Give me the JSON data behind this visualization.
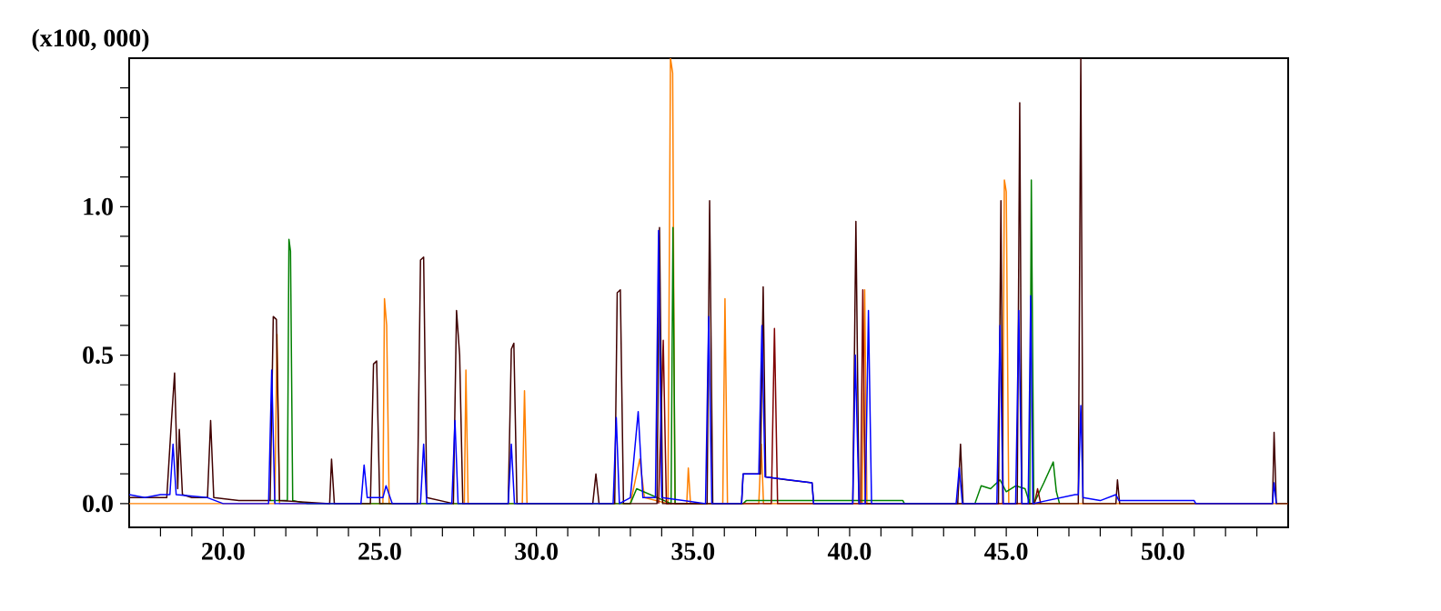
{
  "chart_data": {
    "type": "line",
    "ylabel": "(x100, 000)",
    "xlim": [
      17,
      54
    ],
    "ylim": [
      -0.08,
      1.5
    ],
    "xticks": [
      {
        "value": 18,
        "label": null
      },
      {
        "value": 19,
        "label": null
      },
      {
        "value": 20,
        "label": "20.0"
      },
      {
        "value": 21,
        "label": null
      },
      {
        "value": 22,
        "label": null
      },
      {
        "value": 23,
        "label": null
      },
      {
        "value": 24,
        "label": null
      },
      {
        "value": 25,
        "label": "25.0"
      },
      {
        "value": 26,
        "label": null
      },
      {
        "value": 27,
        "label": null
      },
      {
        "value": 28,
        "label": null
      },
      {
        "value": 29,
        "label": null
      },
      {
        "value": 30,
        "label": "30.0"
      },
      {
        "value": 31,
        "label": null
      },
      {
        "value": 32,
        "label": null
      },
      {
        "value": 33,
        "label": null
      },
      {
        "value": 34,
        "label": null
      },
      {
        "value": 35,
        "label": "35.0"
      },
      {
        "value": 36,
        "label": null
      },
      {
        "value": 37,
        "label": null
      },
      {
        "value": 38,
        "label": null
      },
      {
        "value": 39,
        "label": null
      },
      {
        "value": 40,
        "label": "40.0"
      },
      {
        "value": 41,
        "label": null
      },
      {
        "value": 42,
        "label": null
      },
      {
        "value": 43,
        "label": null
      },
      {
        "value": 44,
        "label": null
      },
      {
        "value": 45,
        "label": "45.0"
      },
      {
        "value": 46,
        "label": null
      },
      {
        "value": 47,
        "label": null
      },
      {
        "value": 48,
        "label": null
      },
      {
        "value": 49,
        "label": null
      },
      {
        "value": 50,
        "label": "50.0"
      },
      {
        "value": 51,
        "label": null
      },
      {
        "value": 52,
        "label": null
      },
      {
        "value": 53,
        "label": null
      }
    ],
    "yticks": [
      {
        "value": 0,
        "label": "0.0"
      },
      {
        "value": 0.1,
        "label": null
      },
      {
        "value": 0.2,
        "label": null
      },
      {
        "value": 0.3,
        "label": null
      },
      {
        "value": 0.4,
        "label": null
      },
      {
        "value": 0.5,
        "label": "0.5"
      },
      {
        "value": 0.6,
        "label": null
      },
      {
        "value": 0.7,
        "label": null
      },
      {
        "value": 0.8,
        "label": null
      },
      {
        "value": 0.9,
        "label": null
      },
      {
        "value": 1.0,
        "label": "1.0"
      },
      {
        "value": 1.1,
        "label": null
      },
      {
        "value": 1.2,
        "label": null
      },
      {
        "value": 1.3,
        "label": null
      },
      {
        "value": 1.4,
        "label": null
      }
    ],
    "marker": "none",
    "line_style": "solid",
    "series": [
      {
        "color": "#ff8000",
        "x": [
          17.0,
          21.65,
          21.72,
          21.8,
          25.1,
          25.15,
          25.22,
          25.3,
          27.7,
          27.75,
          27.82,
          29.55,
          29.62,
          29.7,
          33.0,
          33.3,
          33.45,
          34.2,
          34.28,
          34.35,
          34.42,
          34.8,
          34.85,
          34.92,
          35.95,
          36.02,
          36.1,
          37.1,
          37.18,
          37.25,
          40.4,
          40.48,
          40.55,
          44.88,
          44.94,
          45.0,
          45.08,
          54.0
        ],
        "values": [
          0.0,
          0.0,
          0.57,
          0.0,
          0.0,
          0.69,
          0.6,
          0.0,
          0.0,
          0.45,
          0.0,
          0.0,
          0.38,
          0.0,
          0.0,
          0.15,
          0.02,
          0.0,
          1.5,
          1.45,
          0.0,
          0.0,
          0.12,
          0.0,
          0.0,
          0.69,
          0.0,
          0.0,
          0.2,
          0.0,
          0.0,
          0.72,
          0.0,
          0.0,
          1.09,
          1.05,
          0.0,
          0.0
        ]
      },
      {
        "color": "#008000",
        "x": [
          21.5,
          22.05,
          22.1,
          22.15,
          22.22,
          22.7,
          33.0,
          33.2,
          34.3,
          34.36,
          34.43,
          36.6,
          36.7,
          39.5,
          41.7,
          41.75,
          44.0,
          44.2,
          44.5,
          44.8,
          45.0,
          45.3,
          45.6,
          45.75,
          45.8,
          45.88,
          46.2,
          46.5,
          46.6,
          46.7
        ],
        "values": [
          0.01,
          0.01,
          0.89,
          0.85,
          0.01,
          0.0,
          0.0,
          0.05,
          0.0,
          0.93,
          0.0,
          0.0,
          0.01,
          0.01,
          0.01,
          0.0,
          0.0,
          0.06,
          0.05,
          0.08,
          0.04,
          0.06,
          0.05,
          0.0,
          1.09,
          0.0,
          0.07,
          0.14,
          0.04,
          0.0
        ]
      },
      {
        "color": "#800000",
        "x": [
          33.9,
          34.05,
          34.15,
          37.5,
          37.6,
          37.7,
          40.35,
          40.42,
          40.5,
          45.9,
          46.0,
          46.1
        ],
        "values": [
          0.0,
          0.55,
          0.0,
          0.0,
          0.59,
          0.0,
          0.0,
          0.72,
          0.0,
          0.0,
          0.05,
          0.0
        ]
      },
      {
        "color": "#400000",
        "x": [
          17.0,
          18.2,
          18.35,
          18.45,
          18.55,
          18.6,
          18.7,
          19.0,
          19.5,
          19.6,
          19.7,
          20.5,
          21.5,
          21.6,
          21.7,
          21.8,
          23.4,
          23.46,
          23.55,
          24.7,
          24.8,
          24.9,
          25.0,
          26.2,
          26.3,
          26.4,
          26.5,
          27.35,
          27.45,
          27.55,
          27.65,
          29.1,
          29.2,
          29.28,
          29.38,
          31.8,
          31.9,
          32.0,
          32.5,
          32.58,
          32.68,
          32.78,
          33.85,
          33.93,
          34.03,
          35.45,
          35.53,
          35.63,
          36.55,
          36.6,
          37.15,
          37.24,
          37.32,
          38.0,
          38.8,
          38.85,
          40.1,
          40.2,
          40.3,
          43.45,
          43.54,
          43.62,
          44.75,
          44.83,
          44.9,
          45.35,
          45.43,
          45.5,
          47.3,
          47.38,
          47.45,
          48.5,
          48.55,
          48.62,
          53.5,
          53.55,
          53.62,
          54.0
        ],
        "values": [
          0.02,
          0.02,
          0.28,
          0.44,
          0.05,
          0.25,
          0.03,
          0.02,
          0.02,
          0.28,
          0.02,
          0.01,
          0.01,
          0.63,
          0.62,
          0.01,
          0.0,
          0.15,
          0.0,
          0.0,
          0.47,
          0.48,
          0.0,
          0.0,
          0.82,
          0.83,
          0.02,
          0.0,
          0.65,
          0.5,
          0.0,
          0.0,
          0.52,
          0.54,
          0.0,
          0.0,
          0.1,
          0.0,
          0.0,
          0.71,
          0.72,
          0.0,
          0.0,
          0.93,
          0.0,
          0.0,
          1.02,
          0.0,
          0.0,
          0.1,
          0.1,
          0.73,
          0.09,
          0.08,
          0.07,
          0.0,
          0.0,
          0.95,
          0.0,
          0.0,
          0.2,
          0.0,
          0.0,
          1.02,
          0.0,
          0.0,
          1.35,
          0.0,
          0.0,
          1.5,
          0.0,
          0.0,
          0.08,
          0.0,
          0.0,
          0.24,
          0.0,
          0.0
        ]
      },
      {
        "color": "#0000ff",
        "x": [
          17.0,
          17.5,
          18.0,
          18.3,
          18.4,
          18.5,
          19.5,
          20.0,
          21.45,
          21.55,
          21.65,
          24.4,
          24.5,
          24.6,
          25.1,
          25.2,
          25.4,
          26.3,
          26.4,
          26.5,
          27.3,
          27.4,
          27.5,
          29.1,
          29.2,
          29.3,
          32.45,
          32.55,
          32.65,
          33.0,
          33.25,
          33.4,
          33.8,
          33.9,
          34.0,
          35.4,
          35.5,
          35.6,
          36.55,
          36.6,
          37.1,
          37.2,
          37.3,
          38.8,
          38.85,
          40.1,
          40.18,
          40.3,
          40.5,
          40.6,
          40.7,
          43.4,
          43.5,
          43.6,
          44.7,
          44.8,
          44.9,
          45.3,
          45.4,
          45.5,
          45.7,
          45.78,
          45.85,
          47.2,
          47.3,
          47.38,
          47.45,
          48.0,
          48.5,
          48.6,
          50.0,
          51.0,
          51.05,
          53.5,
          53.55,
          53.62
        ],
        "values": [
          0.03,
          0.02,
          0.03,
          0.03,
          0.2,
          0.03,
          0.02,
          0.0,
          0.0,
          0.45,
          0.0,
          0.0,
          0.13,
          0.02,
          0.02,
          0.06,
          0.0,
          0.0,
          0.2,
          0.0,
          0.0,
          0.28,
          0.0,
          0.0,
          0.2,
          0.0,
          0.0,
          0.29,
          0.0,
          0.02,
          0.31,
          0.02,
          0.02,
          0.92,
          0.02,
          0.0,
          0.63,
          0.0,
          0.0,
          0.1,
          0.1,
          0.6,
          0.09,
          0.07,
          0.0,
          0.0,
          0.5,
          0.0,
          0.0,
          0.65,
          0.0,
          0.0,
          0.12,
          0.0,
          0.0,
          0.6,
          0.0,
          0.0,
          0.65,
          0.0,
          0.0,
          0.7,
          0.0,
          0.03,
          0.03,
          0.33,
          0.02,
          0.01,
          0.03,
          0.01,
          0.01,
          0.01,
          0.0,
          0.0,
          0.07,
          0.0
        ]
      }
    ]
  }
}
